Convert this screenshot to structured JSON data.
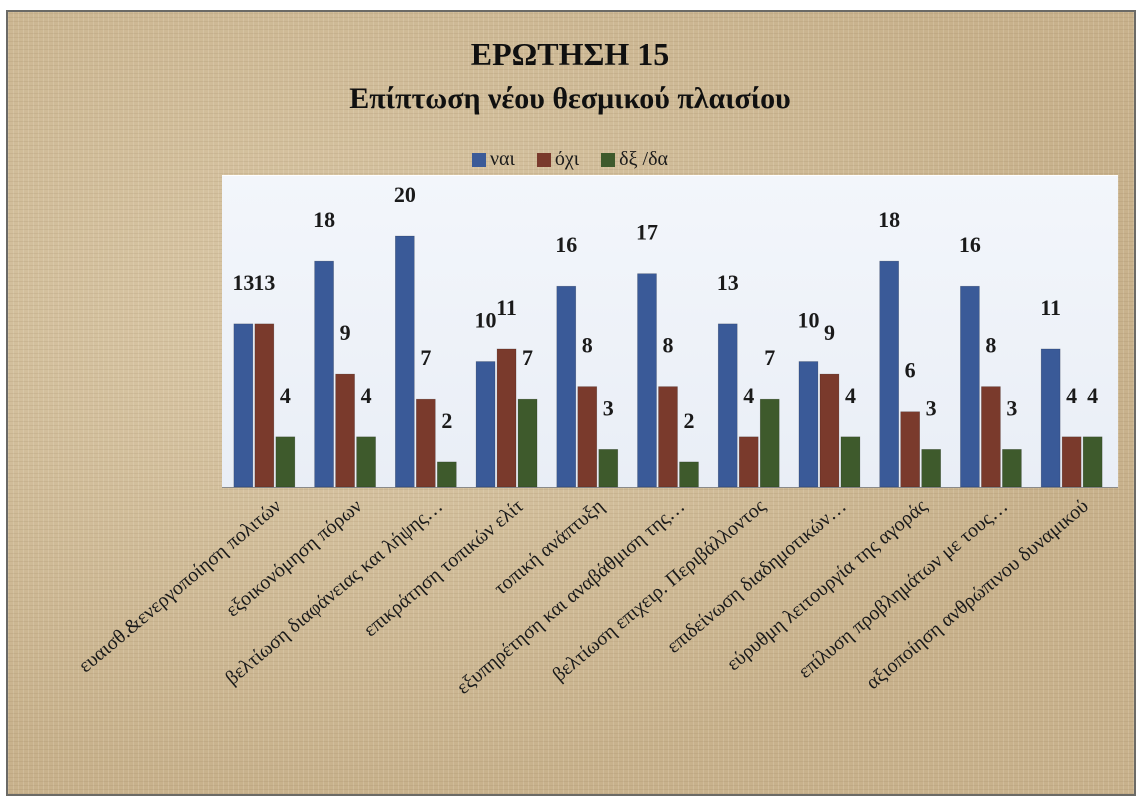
{
  "chart_data": {
    "type": "bar",
    "title": "ΕΡΩΤΗΣΗ 15",
    "subtitle": "Επίπτωση νέου θεσμικού πλαισίου",
    "xlabel": "",
    "ylabel": "",
    "ylim": [
      0,
      20
    ],
    "grid": false,
    "legend_position": "top",
    "categories": [
      "ευαισθ.&ενεργοποίηση πολιτών",
      "εξοικονόμηση πόρων",
      "βελτίωση διαφάνειας και λήψης…",
      "επικράτηση τοπικών ελίτ",
      "τοπική ανάπτυξη",
      "εξυπηρέτηση και αναβάθμιση της…",
      "βελτίωση επιχειρ. Περιβάλλοντος",
      "επιδείνωση διαδημοτικών…",
      "εύρυθμη λειτουργία της αγοράς",
      "επίλυση προβλημάτων με τους…",
      "αξιοποίηση ανθρώπινου δυναμικού"
    ],
    "series": [
      {
        "name": "ναι",
        "color": "#3a5a98",
        "values": [
          13,
          18,
          20,
          10,
          16,
          17,
          13,
          10,
          18,
          16,
          11
        ]
      },
      {
        "name": "όχι",
        "color": "#7a3a2c",
        "values": [
          13,
          9,
          7,
          11,
          8,
          8,
          4,
          9,
          6,
          8,
          4
        ]
      },
      {
        "name": "δξ /δα",
        "color": "#3e5a2c",
        "values": [
          4,
          4,
          2,
          7,
          3,
          2,
          7,
          4,
          3,
          3,
          4
        ]
      }
    ]
  }
}
